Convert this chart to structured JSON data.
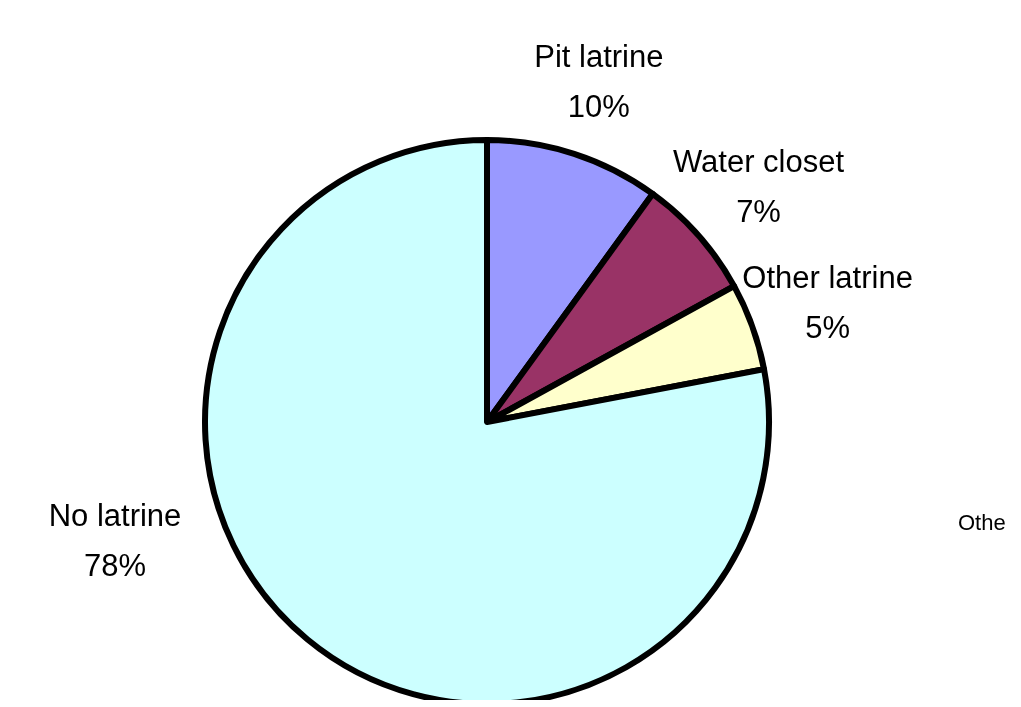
{
  "chart_data": {
    "type": "pie",
    "categories": [
      "Pit latrine",
      "Water closet",
      "Other latrine",
      "No latrine"
    ],
    "values": [
      10,
      7,
      5,
      78
    ],
    "value_labels": [
      "10%",
      "7%",
      "5%",
      "78%"
    ],
    "colors": [
      "#9999ff",
      "#993366",
      "#ffffcc",
      "#ccffff"
    ],
    "annotations": [
      "Othe"
    ]
  }
}
